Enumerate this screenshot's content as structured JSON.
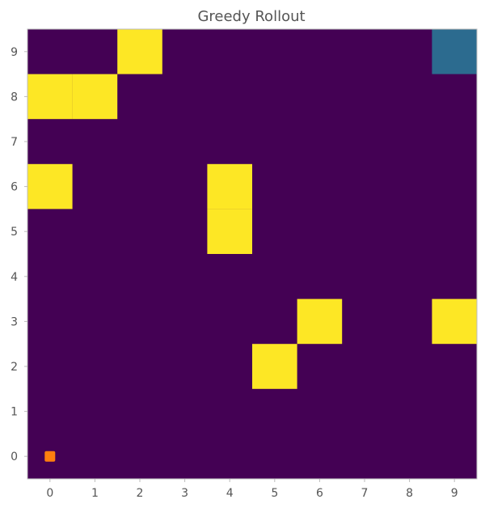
{
  "chart_data": {
    "type": "heatmap",
    "title": "Greedy Rollout",
    "xlabel": "",
    "ylabel": "",
    "x_ticks": [
      "0",
      "1",
      "2",
      "3",
      "4",
      "5",
      "6",
      "7",
      "8",
      "9"
    ],
    "y_ticks": [
      "0",
      "1",
      "2",
      "3",
      "4",
      "5",
      "6",
      "7",
      "8",
      "9"
    ],
    "xlim": [
      -0.5,
      9.5
    ],
    "ylim": [
      -0.5,
      9.5
    ],
    "grid": false,
    "colors": {
      "background": "#440154",
      "obstacle": "#fde725",
      "goal": "#2c6b8f",
      "agent": "#ff7f0e",
      "frame": "#bbbbbb",
      "text": "#555555"
    },
    "obstacle_cells": [
      {
        "x": 2,
        "y": 9
      },
      {
        "x": 0,
        "y": 8
      },
      {
        "x": 1,
        "y": 8
      },
      {
        "x": 0,
        "y": 6
      },
      {
        "x": 4,
        "y": 6
      },
      {
        "x": 4,
        "y": 5
      },
      {
        "x": 6,
        "y": 3
      },
      {
        "x": 9,
        "y": 3
      },
      {
        "x": 5,
        "y": 2
      }
    ],
    "goal_cell": {
      "x": 9,
      "y": 9
    },
    "agent_position": {
      "x": 0,
      "y": 0
    }
  }
}
